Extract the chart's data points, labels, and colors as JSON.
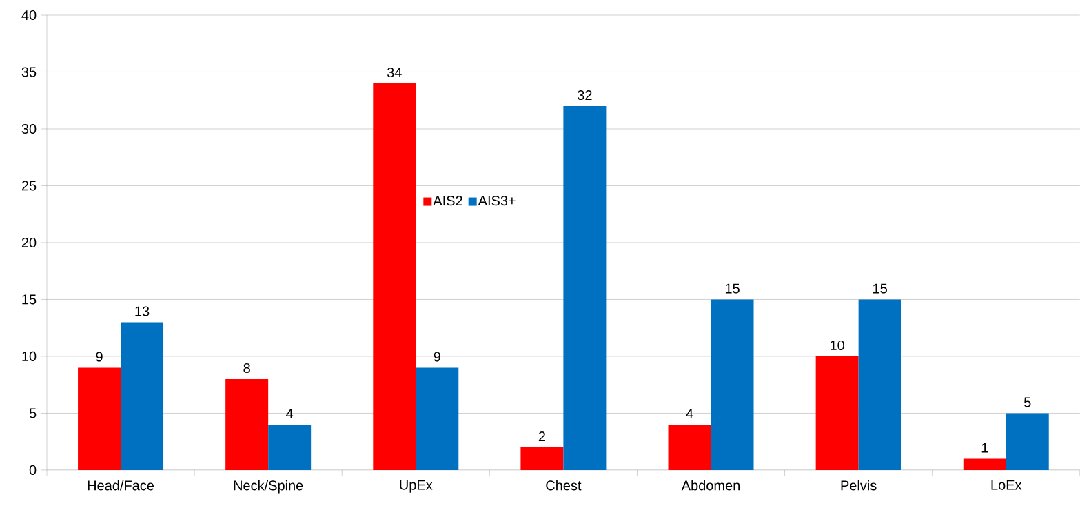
{
  "chart_data": {
    "type": "bar",
    "categories": [
      "Head/Face",
      "Neck/Spine",
      "UpEx",
      "Chest",
      "Abdomen",
      "Pelvis",
      "LoEx"
    ],
    "series": [
      {
        "name": "AIS2",
        "color": "#ff0000",
        "values": [
          9,
          8,
          34,
          2,
          4,
          10,
          1
        ]
      },
      {
        "name": "AIS3+",
        "color": "#0070c0",
        "values": [
          13,
          4,
          9,
          32,
          15,
          15,
          5
        ]
      }
    ],
    "ylim": [
      0,
      40
    ],
    "yticks": [
      0,
      5,
      10,
      15,
      20,
      25,
      30,
      35,
      40
    ],
    "grid": "y",
    "legend": "center",
    "data_labels": true
  }
}
